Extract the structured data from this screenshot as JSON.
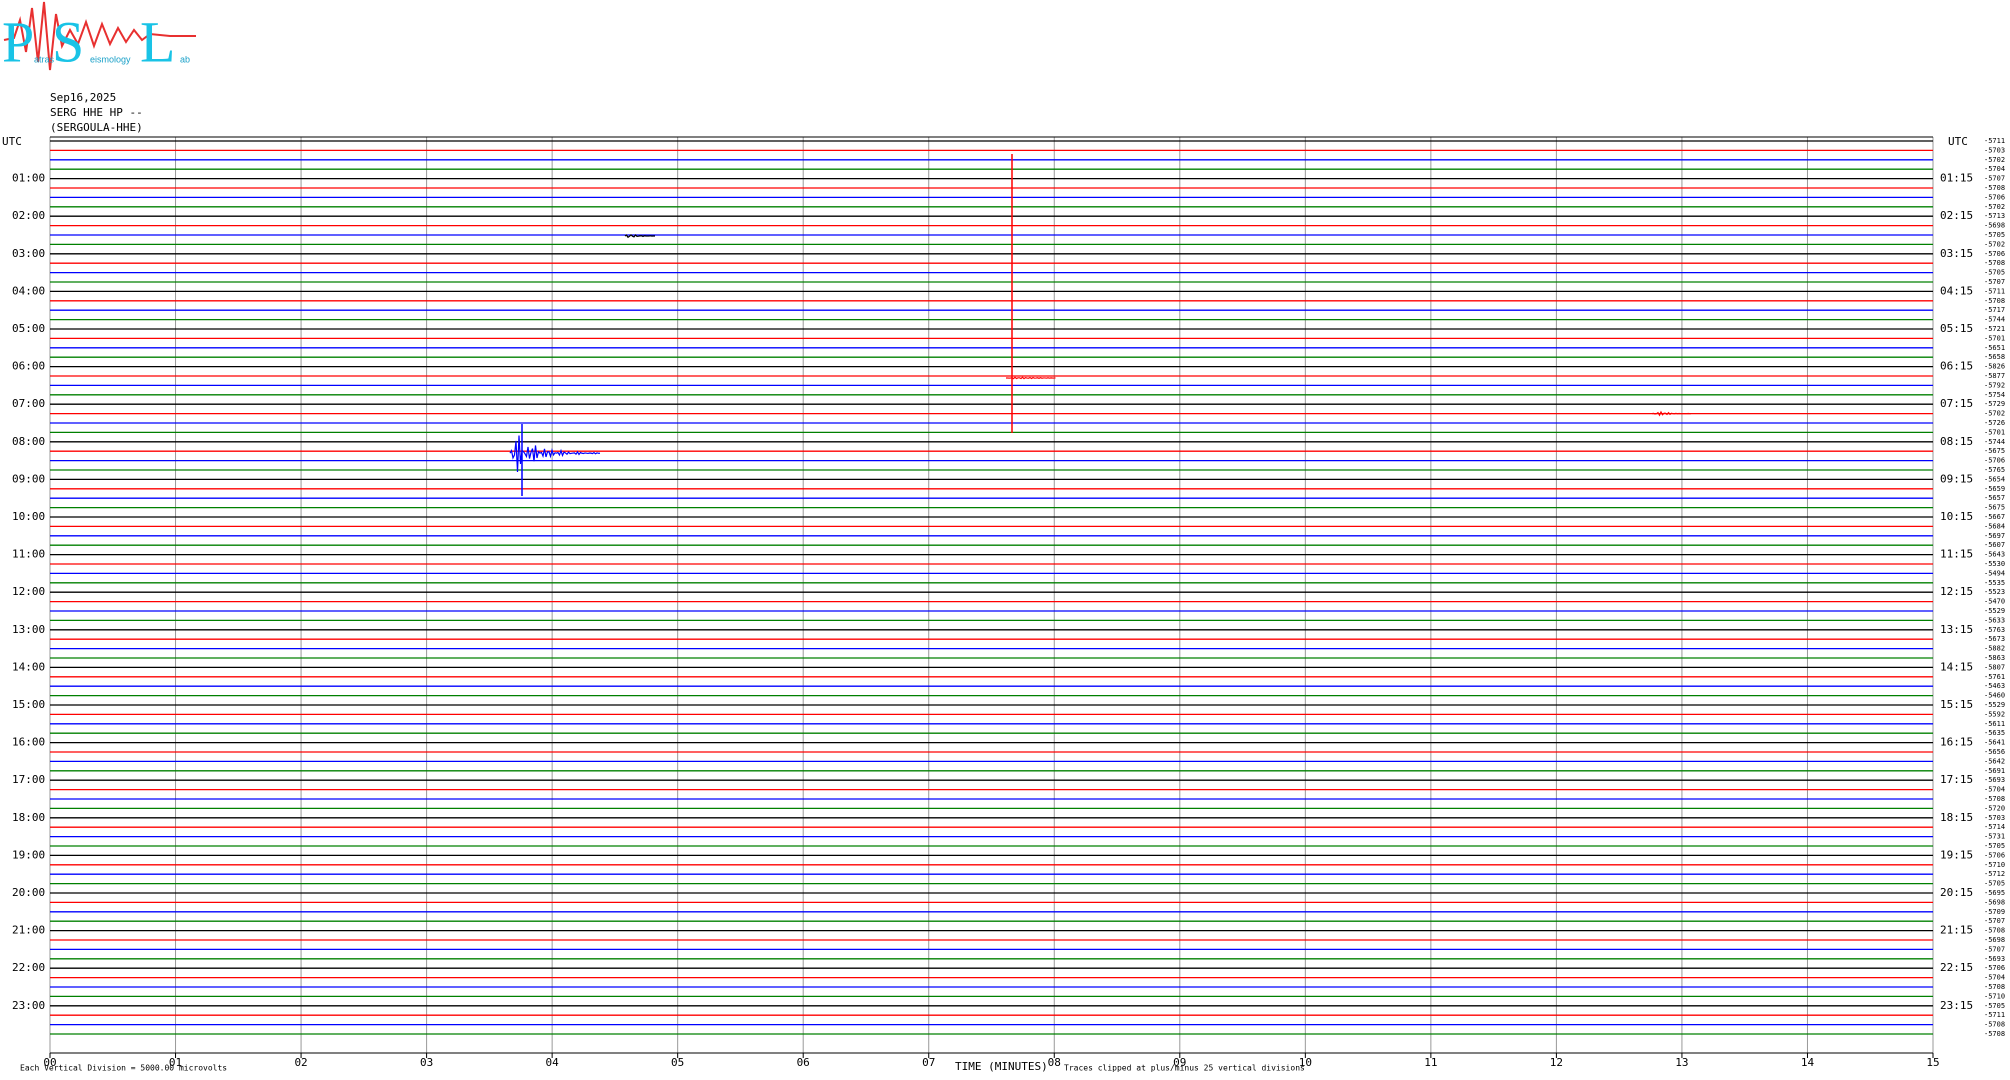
{
  "chart_data": {
    "type": "helicorder",
    "logo": {
      "letters": [
        "P",
        "S",
        "L"
      ],
      "words": [
        "atras",
        "eismology",
        "ab"
      ]
    },
    "header": [
      "Sep16,2025",
      "SERG HHE HP --",
      "(SERGOULA-HHE)"
    ],
    "time_zone": "UTC",
    "xlabel": "TIME (MINUTES)",
    "scale_note": "Each Vertical Division = 5000.00 microvolts",
    "clip_note": "Traces clipped at plus/minus 25 vertical divisions",
    "xlim": [
      0,
      15
    ],
    "xticks": [
      {
        "value": 0,
        "label": "00"
      },
      {
        "value": 1,
        "label": "01"
      },
      {
        "value": 2,
        "label": "02"
      },
      {
        "value": 3,
        "label": "03"
      },
      {
        "value": 4,
        "label": "04"
      },
      {
        "value": 5,
        "label": "05"
      },
      {
        "value": 6,
        "label": "06"
      },
      {
        "value": 7,
        "label": "07"
      },
      {
        "value": 8,
        "label": "08"
      },
      {
        "value": 9,
        "label": "09"
      },
      10,
      11,
      12,
      13,
      14,
      15
    ],
    "left_labels": [
      "01:00",
      "02:00",
      "03:00",
      "04:00",
      "05:00",
      "06:00",
      "07:00",
      "08:00",
      "09:00",
      "10:00",
      "11:00",
      "12:00",
      "13:00",
      "14:00",
      "15:00",
      "16:00",
      "17:00",
      "18:00",
      "19:00",
      "20:00",
      "21:00",
      "22:00",
      "23:00"
    ],
    "right_labels": [
      "01:15",
      "02:15",
      "03:15",
      "04:15",
      "05:15",
      "06:15",
      "07:15",
      "08:15",
      "09:15",
      "10:15",
      "11:15",
      "12:15",
      "13:15",
      "14:15",
      "15:15",
      "16:15",
      "17:15",
      "18:15",
      "19:15",
      "20:15",
      "21:15",
      "22:15",
      "23:15"
    ],
    "trace_colors": [
      "#000000",
      "#ff0000",
      "#0000ff",
      "#008000"
    ],
    "row_offsets": [
      -5711,
      -5703,
      -5702,
      -5704,
      -5707,
      -5708,
      -5706,
      -5702,
      -5713,
      -5698,
      -5705,
      -5702,
      -5706,
      -5708,
      -5705,
      -5707,
      -5711,
      -5708,
      -5717,
      -5744,
      -5721,
      -5701,
      -5651,
      -5658,
      -5826,
      -5877,
      -5792,
      -5754,
      -5729,
      -5702,
      -5726,
      -5701,
      -5744,
      -5675,
      -5706,
      -5765,
      -5654,
      -5659,
      -5657,
      -5675,
      -5667,
      -5684,
      -5697,
      -5607,
      -5643,
      -5530,
      -5494,
      -5535,
      -5523,
      -5470,
      -5529,
      -5633,
      -5763,
      -5673,
      -5882,
      -5863,
      -5807,
      -5761,
      -5463,
      -5460,
      -5529,
      -5592,
      -5611,
      -5635,
      -5641,
      -5656,
      -5642,
      -5691,
      -5693,
      -5704,
      -5708,
      -5720,
      -5703,
      -5714,
      -5731,
      -5705,
      -5706,
      -5710,
      -5712,
      -5705,
      -5695,
      -5698,
      -5709,
      -5707,
      -5708,
      -5698,
      -5707,
      -5693,
      -5706,
      -5704,
      -5708,
      -5710,
      -5705,
      -5711,
      -5708,
      -5708
    ]
  }
}
